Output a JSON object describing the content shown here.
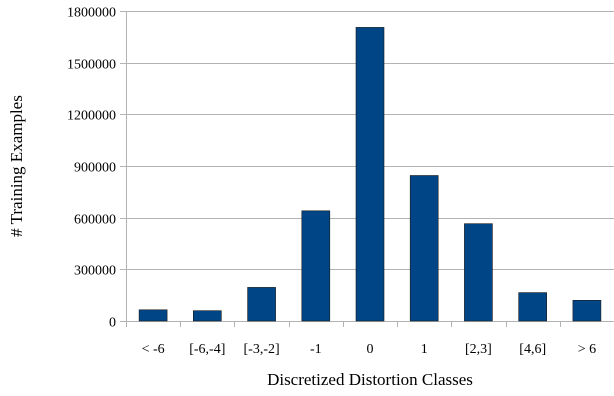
{
  "chart_data": {
    "type": "bar",
    "categories": [
      "< -6",
      "[-6,-4]",
      "[-3,-2]",
      "-1",
      "0",
      "1",
      "[2,3]",
      "[4,6]",
      "> 6"
    ],
    "values": [
      65000,
      60000,
      195000,
      640000,
      1705000,
      845000,
      565000,
      165000,
      120000
    ],
    "title": "",
    "xlabel": "Discretized Distortion Classes",
    "ylabel": "# Training Examples",
    "ylim": [
      0,
      1800000
    ],
    "yticks": [
      0,
      300000,
      600000,
      900000,
      1200000,
      1500000,
      1800000
    ],
    "ytick_labels": [
      "0",
      "300000",
      "600000",
      "900000",
      "1200000",
      "1500000",
      "1800000"
    ],
    "grid": "horizontal",
    "bar_color": "#004586"
  }
}
